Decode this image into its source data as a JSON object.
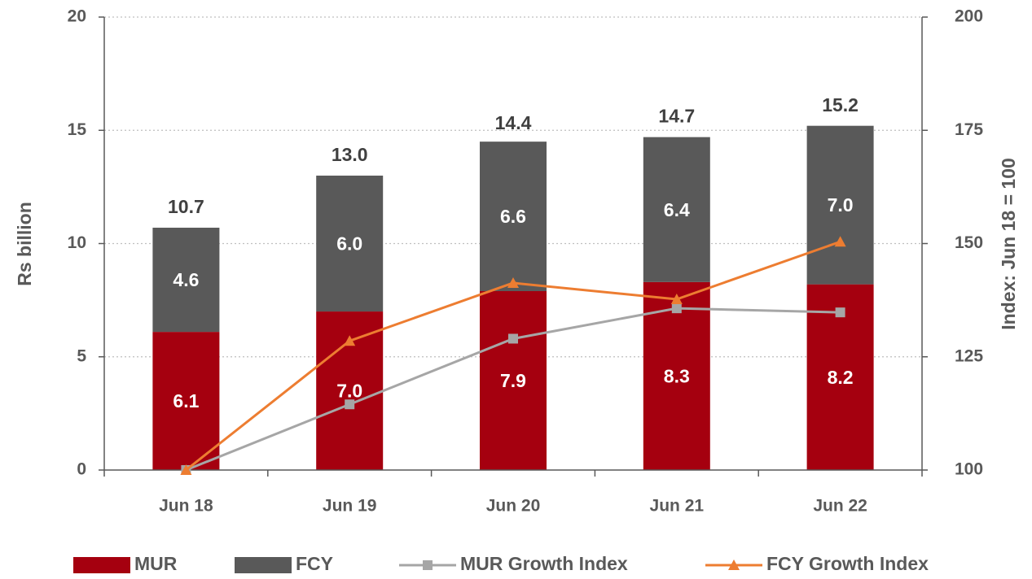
{
  "chart_data": {
    "type": "bar",
    "stacked": true,
    "categories": [
      "Jun 18",
      "Jun 19",
      "Jun 20",
      "Jun 21",
      "Jun 22"
    ],
    "series": [
      {
        "name": "MUR",
        "type": "bar",
        "color": "#a5000f",
        "values": [
          6.1,
          7.0,
          7.9,
          8.3,
          8.2
        ],
        "value_labels": [
          "6.1",
          "7.0",
          "7.9",
          "8.3",
          "8.2"
        ]
      },
      {
        "name": "FCY",
        "type": "bar",
        "color": "#595959",
        "values": [
          4.6,
          6.0,
          6.6,
          6.4,
          7.0
        ],
        "value_labels": [
          "4.6",
          "6.0",
          "6.6",
          "6.4",
          "7.0"
        ]
      },
      {
        "name": "MUR Growth Index",
        "type": "line",
        "axis": "y2",
        "marker": "square",
        "color": "#a6a6a6",
        "values": [
          100,
          114.5,
          129,
          135.7,
          134.8
        ]
      },
      {
        "name": "FCY Growth Index",
        "type": "line",
        "axis": "y2",
        "marker": "triangle",
        "color": "#ed7d31",
        "values": [
          100,
          128.5,
          141.3,
          137.7,
          150.4
        ]
      }
    ],
    "totals": {
      "values": [
        10.7,
        13.0,
        14.4,
        14.7,
        15.2
      ],
      "value_labels": [
        "10.7",
        "13.0",
        "14.4",
        "14.7",
        "15.2"
      ]
    },
    "ylabel": "Rs billion",
    "y2label": "Index: Jun 18 = 100",
    "ylim": [
      0,
      20
    ],
    "yticks": [
      0,
      5,
      10,
      15,
      20
    ],
    "y2lim": [
      100,
      200
    ],
    "y2ticks": [
      100,
      125,
      150,
      175,
      200
    ],
    "grid": true,
    "legend": "bottom"
  }
}
